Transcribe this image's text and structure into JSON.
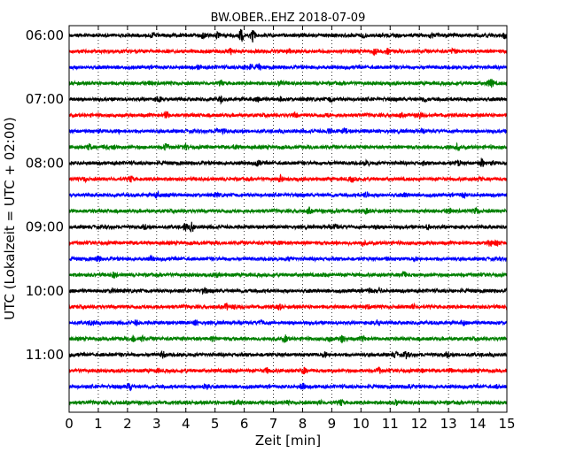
{
  "chart_data": {
    "type": "line",
    "subtype": "helicorder-seismogram",
    "title": "BW.OBER..EHZ 2018-07-09",
    "xlabel": "Zeit  [min]",
    "ylabel": "UTC (Lokalzeit = UTC + 02:00)",
    "xlim": [
      0,
      15
    ],
    "x_ticks": [
      0,
      1,
      2,
      3,
      4,
      5,
      6,
      7,
      8,
      9,
      10,
      11,
      12,
      13,
      14,
      15
    ],
    "grid": "vertical dotted lines at each minute",
    "trace_interval_minutes": 15,
    "trace_start_times": [
      "06:00",
      "06:15",
      "06:30",
      "06:45",
      "07:00",
      "07:15",
      "07:30",
      "07:45",
      "08:00",
      "08:15",
      "08:30",
      "08:45",
      "09:00",
      "09:15",
      "09:30",
      "09:45",
      "10:00",
      "10:15",
      "10:30",
      "10:45",
      "11:00",
      "11:15",
      "11:30",
      "11:45"
    ],
    "y_tick_labels": [
      "06:00",
      "07:00",
      "08:00",
      "09:00",
      "10:00",
      "11:00"
    ],
    "series_colors": [
      "#000000",
      "#ff0000",
      "#0000ff",
      "#008000"
    ],
    "notable_events": [
      {
        "trace": "06:00",
        "minute": 5.9
      },
      {
        "trace": "06:00",
        "minute": 6.3
      }
    ]
  }
}
